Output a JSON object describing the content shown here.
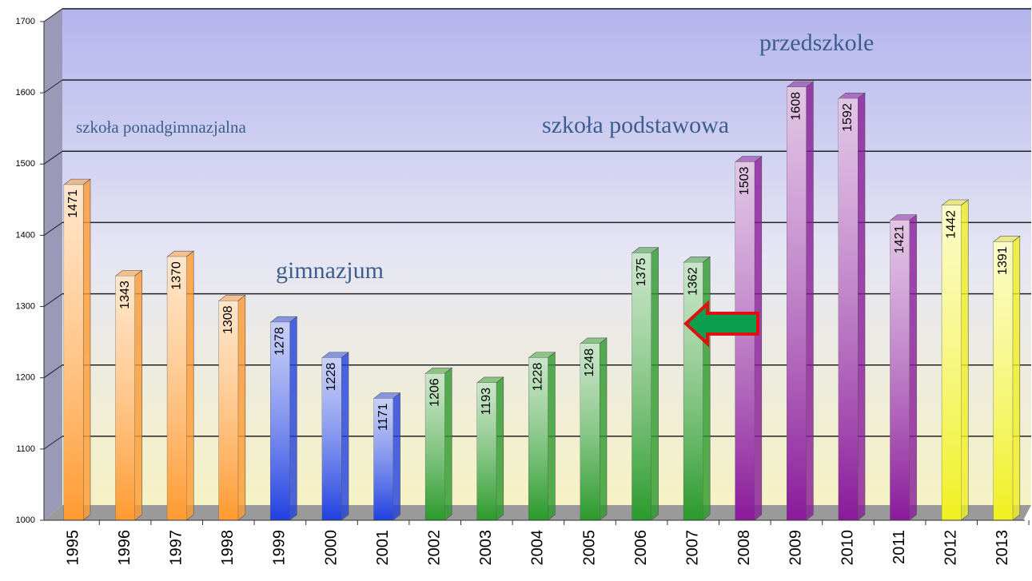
{
  "chart_data": {
    "type": "bar",
    "categories": [
      "1995",
      "1996",
      "1997",
      "1998",
      "1999",
      "2000",
      "2001",
      "2002",
      "2003",
      "2004",
      "2005",
      "2006",
      "2007",
      "2008",
      "2009",
      "2010",
      "2011",
      "2012",
      "2013"
    ],
    "values": [
      1471,
      1343,
      1370,
      1308,
      1278,
      1228,
      1171,
      1206,
      1193,
      1228,
      1248,
      1375,
      1362,
      1503,
      1608,
      1592,
      1421,
      1442,
      1391
    ],
    "colors": [
      "#ff9a30",
      "#ff9a30",
      "#ff9a30",
      "#ff9a30",
      "#2040e0",
      "#2040e0",
      "#2040e0",
      "#2a9a2a",
      "#2a9a2a",
      "#2a9a2a",
      "#2a9a2a",
      "#2a9a2a",
      "#2a9a2a",
      "#8a1a9a",
      "#8a1a9a",
      "#8a1a9a",
      "#8a1a9a",
      "#f0f020",
      "#f0f020"
    ],
    "ylim": [
      1000,
      1700
    ],
    "yticks": [
      1000,
      1100,
      1200,
      1300,
      1400,
      1500,
      1600,
      1700
    ],
    "grid": true,
    "annotations": [
      "szkoła ponadgimnazjalna",
      "gimnazjum",
      "szkoła podstawowa",
      "przedszkole"
    ]
  }
}
